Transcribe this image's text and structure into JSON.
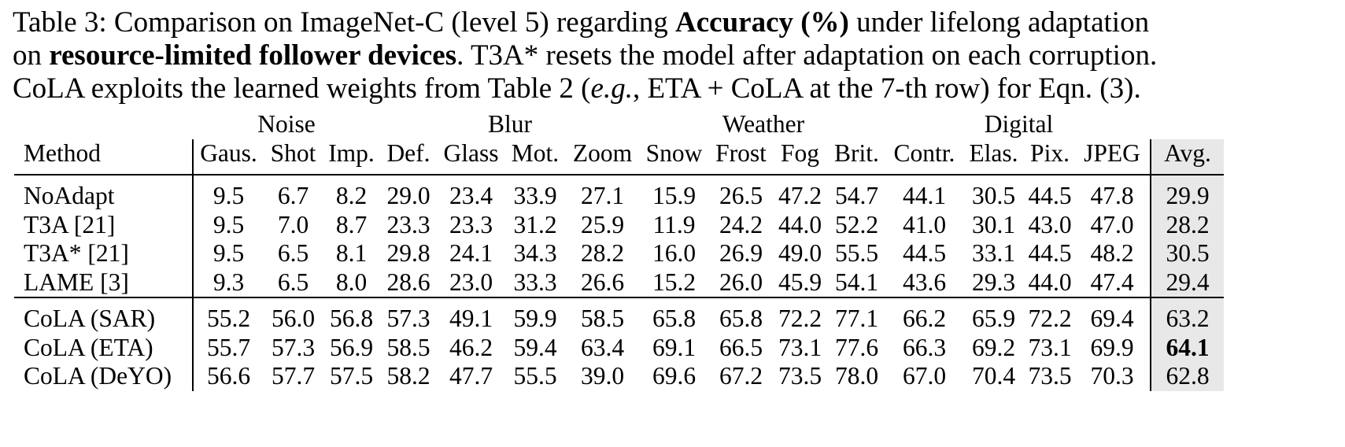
{
  "caption": {
    "lines": [
      [
        "Table 3: Comparison on ImageNet-C (level 5) regarding ",
        "Accuracy (%)",
        " under lifelong adaptation"
      ],
      [
        "on ",
        "resource-limited follower devices",
        ". T3A* resets the model after adaptation on each corruption."
      ],
      [
        "CoLA exploits the learned weights from Table 2 (",
        "e.g.",
        ", ETA + CoLA at the 7-th row) for Eqn. (3)."
      ]
    ]
  },
  "table": {
    "groups": [
      "Noise",
      "Blur",
      "Weather",
      "Digital"
    ],
    "columns": [
      "Method",
      "Gaus.",
      "Shot",
      "Imp.",
      "Def.",
      "Glass",
      "Mot.",
      "Zoom",
      "Snow",
      "Frost",
      "Fog",
      "Brit.",
      "Contr.",
      "Elas.",
      "Pix.",
      "JPEG",
      "Avg."
    ],
    "sections": [
      [
        {
          "method": "NoAdapt",
          "values": [
            "9.5",
            "6.7",
            "8.2",
            "29.0",
            "23.4",
            "33.9",
            "27.1",
            "15.9",
            "26.5",
            "47.2",
            "54.7",
            "44.1",
            "30.5",
            "44.5",
            "47.8",
            "29.9"
          ]
        },
        {
          "method": "T3A [21]",
          "values": [
            "9.5",
            "7.0",
            "8.7",
            "23.3",
            "23.3",
            "31.2",
            "25.9",
            "11.9",
            "24.2",
            "44.0",
            "52.2",
            "41.0",
            "30.1",
            "43.0",
            "47.0",
            "28.2"
          ]
        },
        {
          "method": "T3A* [21]",
          "values": [
            "9.5",
            "6.5",
            "8.1",
            "29.8",
            "24.1",
            "34.3",
            "28.2",
            "16.0",
            "26.9",
            "49.0",
            "55.5",
            "44.5",
            "33.1",
            "44.5",
            "48.2",
            "30.5"
          ]
        },
        {
          "method": "LAME [3]",
          "values": [
            "9.3",
            "6.5",
            "8.0",
            "28.6",
            "23.0",
            "33.3",
            "26.6",
            "15.2",
            "26.0",
            "45.9",
            "54.1",
            "43.6",
            "29.3",
            "44.0",
            "47.4",
            "29.4"
          ]
        }
      ],
      [
        {
          "method": "CoLA (SAR)",
          "values": [
            "55.2",
            "56.0",
            "56.8",
            "57.3",
            "49.1",
            "59.9",
            "58.5",
            "65.8",
            "65.8",
            "72.2",
            "77.1",
            "66.2",
            "65.9",
            "72.2",
            "69.4",
            "63.2"
          ]
        },
        {
          "method": "CoLA (ETA)",
          "values": [
            "55.7",
            "57.3",
            "56.9",
            "58.5",
            "46.2",
            "59.4",
            "63.4",
            "69.1",
            "66.5",
            "73.1",
            "77.6",
            "66.3",
            "69.2",
            "73.1",
            "69.9",
            "64.1"
          ]
        },
        {
          "method": "CoLA (DeYO)",
          "values": [
            "56.6",
            "57.7",
            "57.5",
            "58.2",
            "47.7",
            "55.5",
            "39.0",
            "69.6",
            "67.2",
            "73.5",
            "78.0",
            "67.0",
            "70.4",
            "73.5",
            "70.3",
            "62.8"
          ]
        }
      ]
    ]
  }
}
